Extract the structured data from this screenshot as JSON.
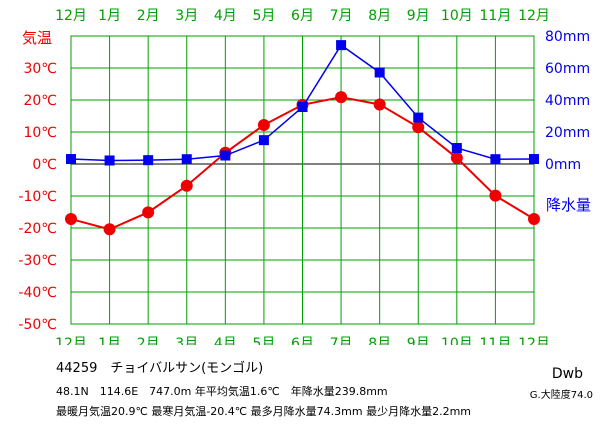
{
  "station": {
    "id_name": "44259　チョイバルサン(モンゴル)",
    "summary_line1": "48.1N　114.6E　747.0m 年平均気温1.6℃　年降水量239.8mm",
    "summary_line2": "最暖月気温20.9℃ 最寒月気温-20.4℃ 最多月降水量74.3mm 最少月降水量2.2mm",
    "climate_code": "Dwb",
    "climate_desc": "G.大陸度74.0"
  },
  "colors": {
    "month_labels": "#00a000",
    "temperature": "#ee0000",
    "precipitation": "#0000ee",
    "grid": "#00a000",
    "zero_line": "#000000"
  },
  "chart_data": {
    "type": "line",
    "categories": [
      "12月",
      "1月",
      "2月",
      "3月",
      "4月",
      "5月",
      "6月",
      "7月",
      "8月",
      "9月",
      "10月",
      "11月",
      "12月"
    ],
    "series": [
      {
        "name": "気温",
        "axis": "left",
        "marker": "circle",
        "values": [
          -17.2,
          -20.4,
          -15.1,
          -6.8,
          3.5,
          12.2,
          18.5,
          20.9,
          18.6,
          11.5,
          1.9,
          -9.9,
          -17.2
        ]
      },
      {
        "name": "降水量",
        "axis": "right",
        "marker": "square",
        "values": [
          3.1,
          2.2,
          2.4,
          3.0,
          5.3,
          14.9,
          35.6,
          74.3,
          57.2,
          29.0,
          10.0,
          3.0,
          3.1
        ]
      }
    ],
    "y_left": {
      "label": "気温",
      "ylim": [
        -50,
        40
      ],
      "ticks": [
        30,
        20,
        10,
        0,
        -10,
        -20,
        -30,
        -40,
        -50
      ],
      "tick_labels": [
        "30℃",
        "20℃",
        "10℃",
        "0℃",
        "-10℃",
        "-20℃",
        "-30℃",
        "-40℃",
        "-50℃"
      ]
    },
    "y_right": {
      "label": "降水量",
      "ylim": [
        0,
        80
      ],
      "ticks": [
        80,
        60,
        40,
        20,
        0
      ],
      "tick_labels": [
        "80mm",
        "60mm",
        "40mm",
        "20mm",
        "0mm"
      ]
    },
    "grid": true,
    "legend": "none"
  }
}
